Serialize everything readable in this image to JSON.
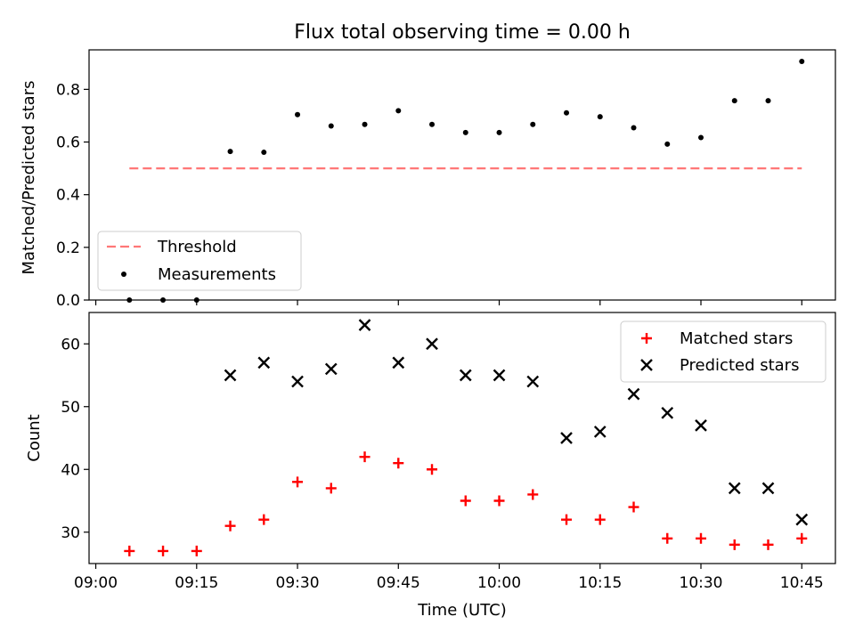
{
  "chart_data": [
    {
      "type": "scatter",
      "title": "Flux total observing time = 0.00 h",
      "xlabel": "",
      "ylabel": "Matched/Predicted stars",
      "ylim": [
        0,
        0.95
      ],
      "yticks": [
        "0.0",
        "0.2",
        "0.4",
        "0.6",
        "0.8"
      ],
      "threshold": {
        "name": "Threshold",
        "value": 0.5,
        "x_start": "09:05",
        "x_end": "10:45",
        "color": "#ff7777",
        "style": "dashed"
      },
      "series": [
        {
          "name": "Measurements",
          "color": "#000000",
          "marker": "dot",
          "x": [
            "09:05",
            "09:10",
            "09:15",
            "09:20",
            "09:25",
            "09:30",
            "09:35",
            "09:40",
            "09:45",
            "09:50",
            "09:55",
            "10:00",
            "10:05",
            "10:10",
            "10:15",
            "10:20",
            "10:25",
            "10:30",
            "10:35",
            "10:40",
            "10:45"
          ],
          "values": [
            0.0,
            0.0,
            0.0,
            0.564,
            0.561,
            0.704,
            0.661,
            0.667,
            0.719,
            0.667,
            0.636,
            0.636,
            0.667,
            0.711,
            0.696,
            0.654,
            0.592,
            0.617,
            0.757,
            0.757,
            0.906
          ]
        }
      ],
      "legend": {
        "placement": "lower-left",
        "entries": [
          "Threshold",
          "Measurements"
        ]
      }
    },
    {
      "type": "scatter",
      "title": "",
      "xlabel": "Time (UTC)",
      "ylabel": "Count",
      "ylim": [
        25,
        65
      ],
      "yticks": [
        "30",
        "40",
        "50",
        "60"
      ],
      "xlim": [
        "08:59",
        "10:50"
      ],
      "xticks": [
        "09:00",
        "09:15",
        "09:30",
        "09:45",
        "10:00",
        "10:15",
        "10:30",
        "10:45"
      ],
      "series": [
        {
          "name": "Matched stars",
          "color": "#ff0000",
          "marker": "plus",
          "x": [
            "09:05",
            "09:10",
            "09:15",
            "09:20",
            "09:25",
            "09:30",
            "09:35",
            "09:40",
            "09:45",
            "09:50",
            "09:55",
            "10:00",
            "10:05",
            "10:10",
            "10:15",
            "10:20",
            "10:25",
            "10:30",
            "10:35",
            "10:40",
            "10:45"
          ],
          "values": [
            27,
            27,
            27,
            31,
            32,
            38,
            37,
            42,
            41,
            40,
            35,
            35,
            36,
            32,
            32,
            34,
            29,
            29,
            28,
            28,
            29
          ]
        },
        {
          "name": "Predicted stars",
          "color": "#000000",
          "marker": "x",
          "x": [
            "09:20",
            "09:25",
            "09:30",
            "09:35",
            "09:40",
            "09:45",
            "09:50",
            "09:55",
            "10:00",
            "10:05",
            "10:10",
            "10:15",
            "10:20",
            "10:25",
            "10:30",
            "10:35",
            "10:40",
            "10:45"
          ],
          "values": [
            55,
            57,
            54,
            56,
            63,
            57,
            60,
            55,
            55,
            54,
            45,
            46,
            52,
            49,
            47,
            37,
            37,
            32
          ]
        }
      ],
      "legend": {
        "placement": "upper-right",
        "entries": [
          "Matched stars",
          "Predicted stars"
        ]
      }
    }
  ]
}
